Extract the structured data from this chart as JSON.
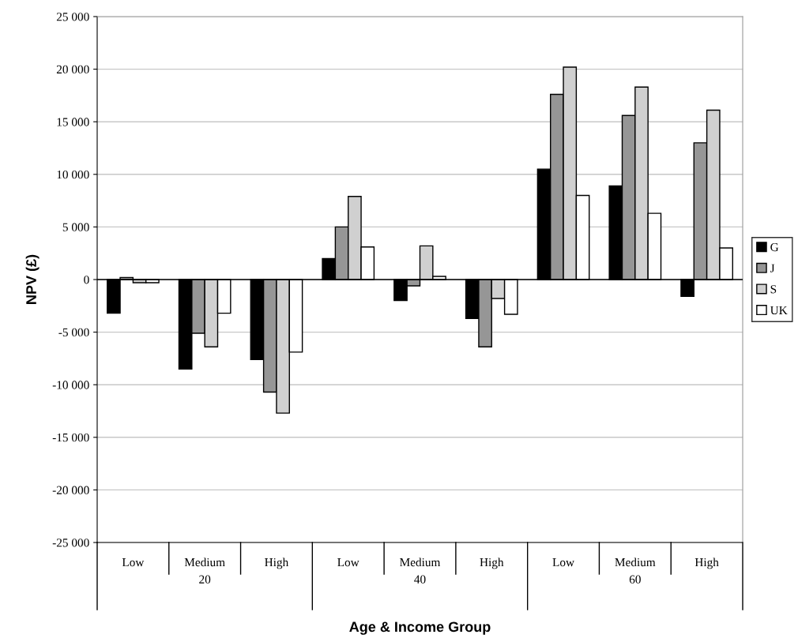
{
  "chart_data": {
    "type": "bar",
    "xlabel": "Age & Income Group",
    "ylabel": "NPV (£)",
    "categories": [
      "Low",
      "Medium",
      "High",
      "Low",
      "Medium",
      "High",
      "Low",
      "Medium",
      "High"
    ],
    "annotations": [
      "20",
      "40",
      "60"
    ],
    "series": [
      {
        "name": "G",
        "color": "#000000",
        "values": [
          -3200,
          -8500,
          -7600,
          2000,
          -2000,
          -3700,
          10500,
          8900,
          -1600
        ]
      },
      {
        "name": "J",
        "color": "#969696",
        "values": [
          200,
          -5100,
          -10700,
          5000,
          -600,
          -6400,
          17600,
          15600,
          13000
        ]
      },
      {
        "name": "S",
        "color": "#d0d0d0",
        "values": [
          -300,
          -6400,
          -12700,
          7900,
          3200,
          -1800,
          20200,
          18300,
          16100
        ]
      },
      {
        "name": "UK",
        "color": "#ffffff",
        "values": [
          -300,
          -3200,
          -6900,
          3100,
          300,
          -3300,
          8000,
          6300,
          3000
        ]
      }
    ],
    "ylim": [
      -25000,
      25000
    ],
    "yticks": [
      {
        "value": -25000,
        "label": "-25 000"
      },
      {
        "value": -20000,
        "label": "-20 000"
      },
      {
        "value": -15000,
        "label": "-15 000"
      },
      {
        "value": -10000,
        "label": "-10 000"
      },
      {
        "value": -5000,
        "label": "-5 000"
      },
      0,
      {
        "value": 5000,
        "label": "5 000"
      },
      {
        "value": 10000,
        "label": "10 000"
      },
      {
        "value": 15000,
        "label": "15 000"
      },
      {
        "value": 20000,
        "label": "20 000"
      },
      {
        "value": 25000,
        "label": "25 000"
      }
    ],
    "grid": "y",
    "legend": "right"
  }
}
